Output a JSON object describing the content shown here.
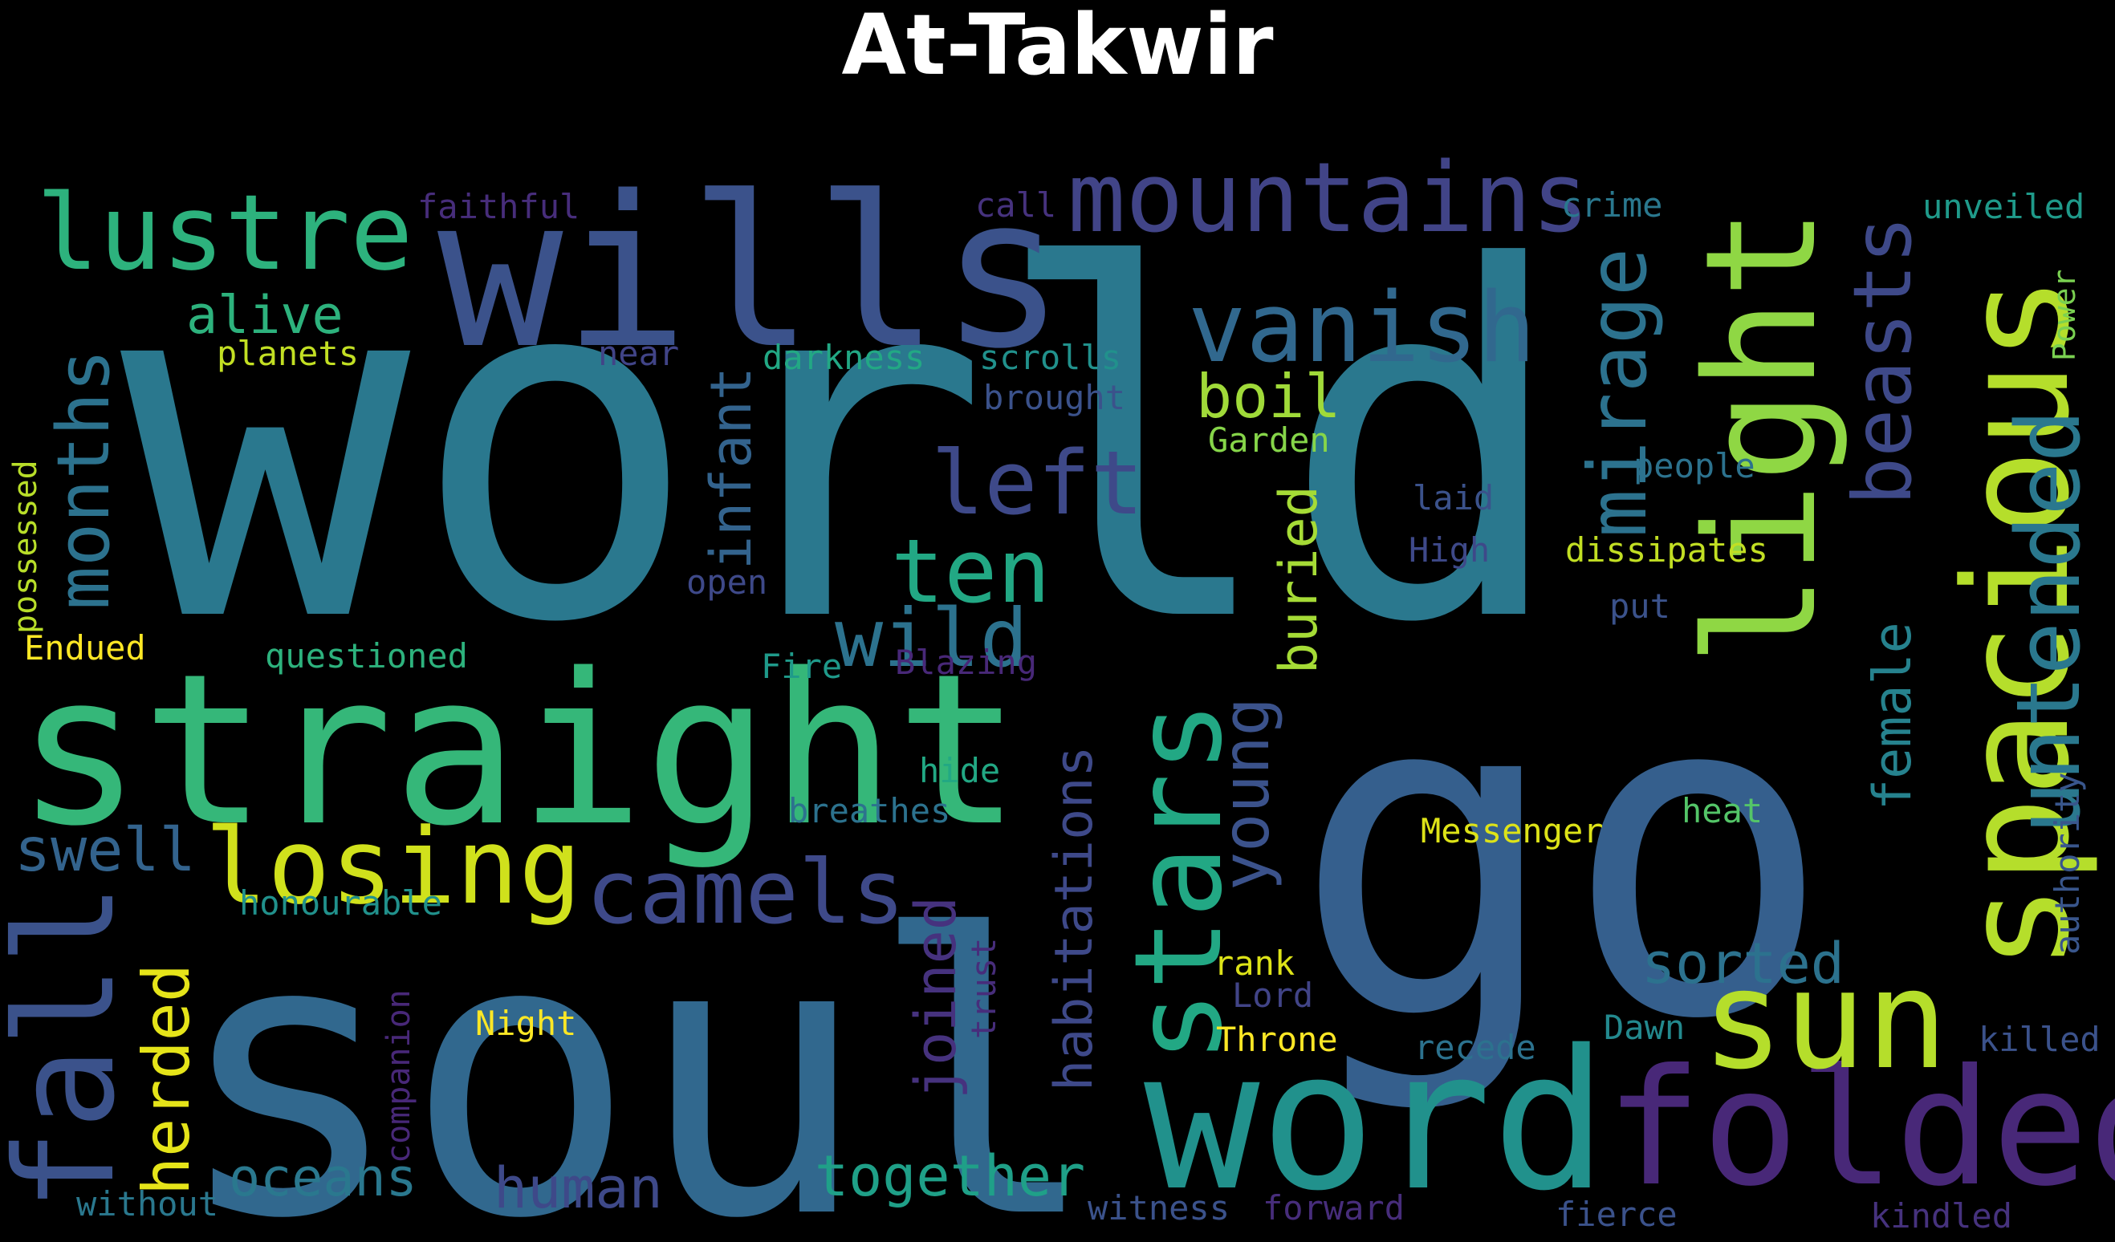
{
  "title": "At-Takwir",
  "palette": {
    "background": "#000000",
    "title": "#ffffff"
  },
  "words": [
    {
      "text": "world",
      "color": "#2a788e"
    },
    {
      "text": "go",
      "color": "#355f8d"
    },
    {
      "text": "soul",
      "color": "#31688e"
    },
    {
      "text": "wills",
      "color": "#3b528b"
    },
    {
      "text": "straight",
      "color": "#35b779"
    },
    {
      "text": "word",
      "color": "#21918c"
    },
    {
      "text": "folded",
      "color": "#482878"
    },
    {
      "text": "light",
      "color": "#8fd744"
    },
    {
      "text": "spacious",
      "color": "#b5de2b"
    },
    {
      "text": "lustre",
      "color": "#2db27d"
    },
    {
      "text": "mountains",
      "color": "#414487"
    },
    {
      "text": "vanish",
      "color": "#31688e"
    },
    {
      "text": "stars",
      "color": "#22a884"
    },
    {
      "text": "sun",
      "color": "#b5de2b"
    },
    {
      "text": "losing",
      "color": "#d0e11c"
    },
    {
      "text": "camels",
      "color": "#3e4989"
    },
    {
      "text": "fall",
      "color": "#3b528b"
    },
    {
      "text": "months",
      "color": "#2c728e"
    },
    {
      "text": "mirage",
      "color": "#2c728e"
    },
    {
      "text": "beasts",
      "color": "#3e4989"
    },
    {
      "text": "untended",
      "color": "#2a788e"
    },
    {
      "text": "left",
      "color": "#3e4989"
    },
    {
      "text": "ten",
      "color": "#22a884"
    },
    {
      "text": "wild",
      "color": "#2c728e"
    },
    {
      "text": "boil",
      "color": "#a0da39"
    },
    {
      "text": "alive",
      "color": "#2db27d"
    },
    {
      "text": "herded",
      "color": "#e5e419"
    },
    {
      "text": "swell",
      "color": "#33638d"
    },
    {
      "text": "young",
      "color": "#3b528b"
    },
    {
      "text": "infant",
      "color": "#33638d"
    },
    {
      "text": "buried",
      "color": "#a5db36"
    },
    {
      "text": "female",
      "color": "#26828e"
    },
    {
      "text": "habitations",
      "color": "#3e4989"
    },
    {
      "text": "joined",
      "color": "#46327e"
    },
    {
      "text": "sorted",
      "color": "#2c728e"
    },
    {
      "text": "oceans",
      "color": "#2a788e"
    },
    {
      "text": "human",
      "color": "#3e4989"
    },
    {
      "text": "together",
      "color": "#1fa088"
    },
    {
      "text": "faithful",
      "color": "#472d7b"
    },
    {
      "text": "call",
      "color": "#46327e"
    },
    {
      "text": "crime",
      "color": "#2a788e"
    },
    {
      "text": "unveiled",
      "color": "#1f9a8a"
    },
    {
      "text": "planets",
      "color": "#c2df23"
    },
    {
      "text": "near",
      "color": "#414487"
    },
    {
      "text": "darkness",
      "color": "#22a884"
    },
    {
      "text": "scrolls",
      "color": "#21918c"
    },
    {
      "text": "brought",
      "color": "#3b528b"
    },
    {
      "text": "Power",
      "color": "#7ad151"
    },
    {
      "text": "Garden",
      "color": "#86d549"
    },
    {
      "text": "people",
      "color": "#2c728e"
    },
    {
      "text": "laid",
      "color": "#3b528b"
    },
    {
      "text": "possessed",
      "color": "#b8de29"
    },
    {
      "text": "High",
      "color": "#3e4989"
    },
    {
      "text": "dissipates",
      "color": "#c2df23"
    },
    {
      "text": "open",
      "color": "#3e4989"
    },
    {
      "text": "put",
      "color": "#3b528b"
    },
    {
      "text": "Endued",
      "color": "#fde725"
    },
    {
      "text": "questioned",
      "color": "#2db27d"
    },
    {
      "text": "Fire",
      "color": "#1f9a8a"
    },
    {
      "text": "Blazing",
      "color": "#482878"
    },
    {
      "text": "hide",
      "color": "#22a884"
    },
    {
      "text": "breathes",
      "color": "#2c728e"
    },
    {
      "text": "heat",
      "color": "#54c568"
    },
    {
      "text": "Messenger",
      "color": "#dde318"
    },
    {
      "text": "authority",
      "color": "#39568c"
    },
    {
      "text": "honourable",
      "color": "#21918c"
    },
    {
      "text": "trust",
      "color": "#472d7b"
    },
    {
      "text": "rank",
      "color": "#dde318"
    },
    {
      "text": "Lord",
      "color": "#414487"
    },
    {
      "text": "Night",
      "color": "#fde725"
    },
    {
      "text": "companion",
      "color": "#482878"
    },
    {
      "text": "Throne",
      "color": "#fde725"
    },
    {
      "text": "recede",
      "color": "#2c728e"
    },
    {
      "text": "Dawn",
      "color": "#23898e"
    },
    {
      "text": "killed",
      "color": "#3b528b"
    },
    {
      "text": "without",
      "color": "#2a788e"
    },
    {
      "text": "witness",
      "color": "#3b528b"
    },
    {
      "text": "forward",
      "color": "#472d7b"
    },
    {
      "text": "fierce",
      "color": "#3b528b"
    },
    {
      "text": "kindled",
      "color": "#46327e"
    }
  ]
}
